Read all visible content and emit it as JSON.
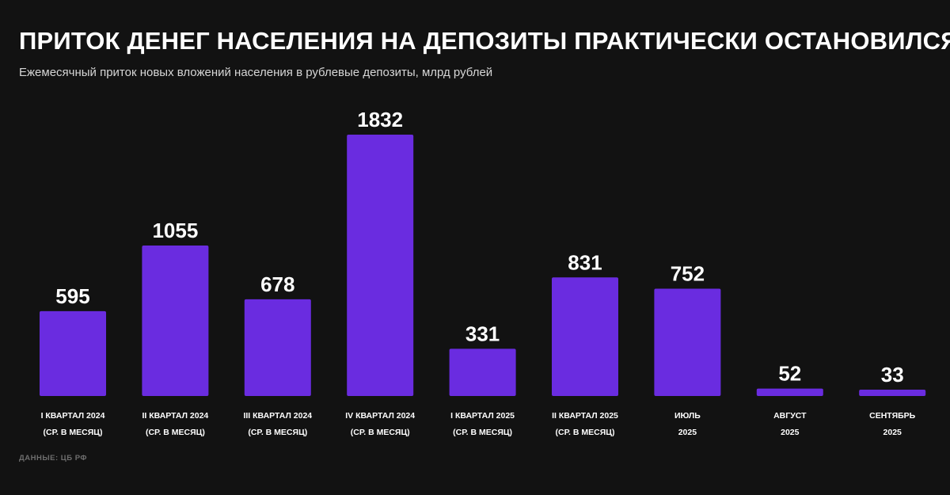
{
  "header": {
    "title": "ПРИТОК ДЕНЕГ НАСЕЛЕНИЯ НА ДЕПОЗИТЫ ПРАКТИЧЕСКИ ОСТАНОВИЛСЯ",
    "subtitle": "Ежемесячный приток новых вложений населения в рублевые депозиты, млрд рублей"
  },
  "footer": {
    "source": "ДАННЫЕ: ЦБ РФ"
  },
  "colors": {
    "background": "#121212",
    "bar": "#6a2ce0",
    "text": "#ffffff"
  },
  "chart_data": {
    "type": "bar",
    "categories": [
      [
        "I КВАРТАЛ 2024",
        "(СР. В МЕСЯЦ)"
      ],
      [
        "II КВАРТАЛ 2024",
        "(СР. В МЕСЯЦ)"
      ],
      [
        "III КВАРТАЛ 2024",
        "(СР. В МЕСЯЦ)"
      ],
      [
        "IV КВАРТАЛ 2024",
        "(СР. В МЕСЯЦ)"
      ],
      [
        "I КВАРТАЛ 2025",
        "(СР. В МЕСЯЦ)"
      ],
      [
        "II КВАРТАЛ 2025",
        "(СР. В МЕСЯЦ)"
      ],
      [
        "ИЮЛЬ",
        "2025"
      ],
      [
        "АВГУСТ",
        "2025"
      ],
      [
        "СЕНТЯБРЬ",
        "2025"
      ]
    ],
    "values": [
      595,
      1055,
      678,
      1832,
      331,
      831,
      752,
      52,
      33
    ],
    "title": "ПРИТОК ДЕНЕГ НАСЕЛЕНИЯ НА ДЕПОЗИТЫ ПРАКТИЧЕСКИ ОСТАНОВИЛСЯ",
    "subtitle": "Ежемесячный приток новых вложений населения в рублевые депозиты, млрд рублей",
    "xlabel": "",
    "ylabel": "",
    "ylim": [
      0,
      1832
    ],
    "grid": false,
    "legend": "none",
    "data_labels": true
  }
}
